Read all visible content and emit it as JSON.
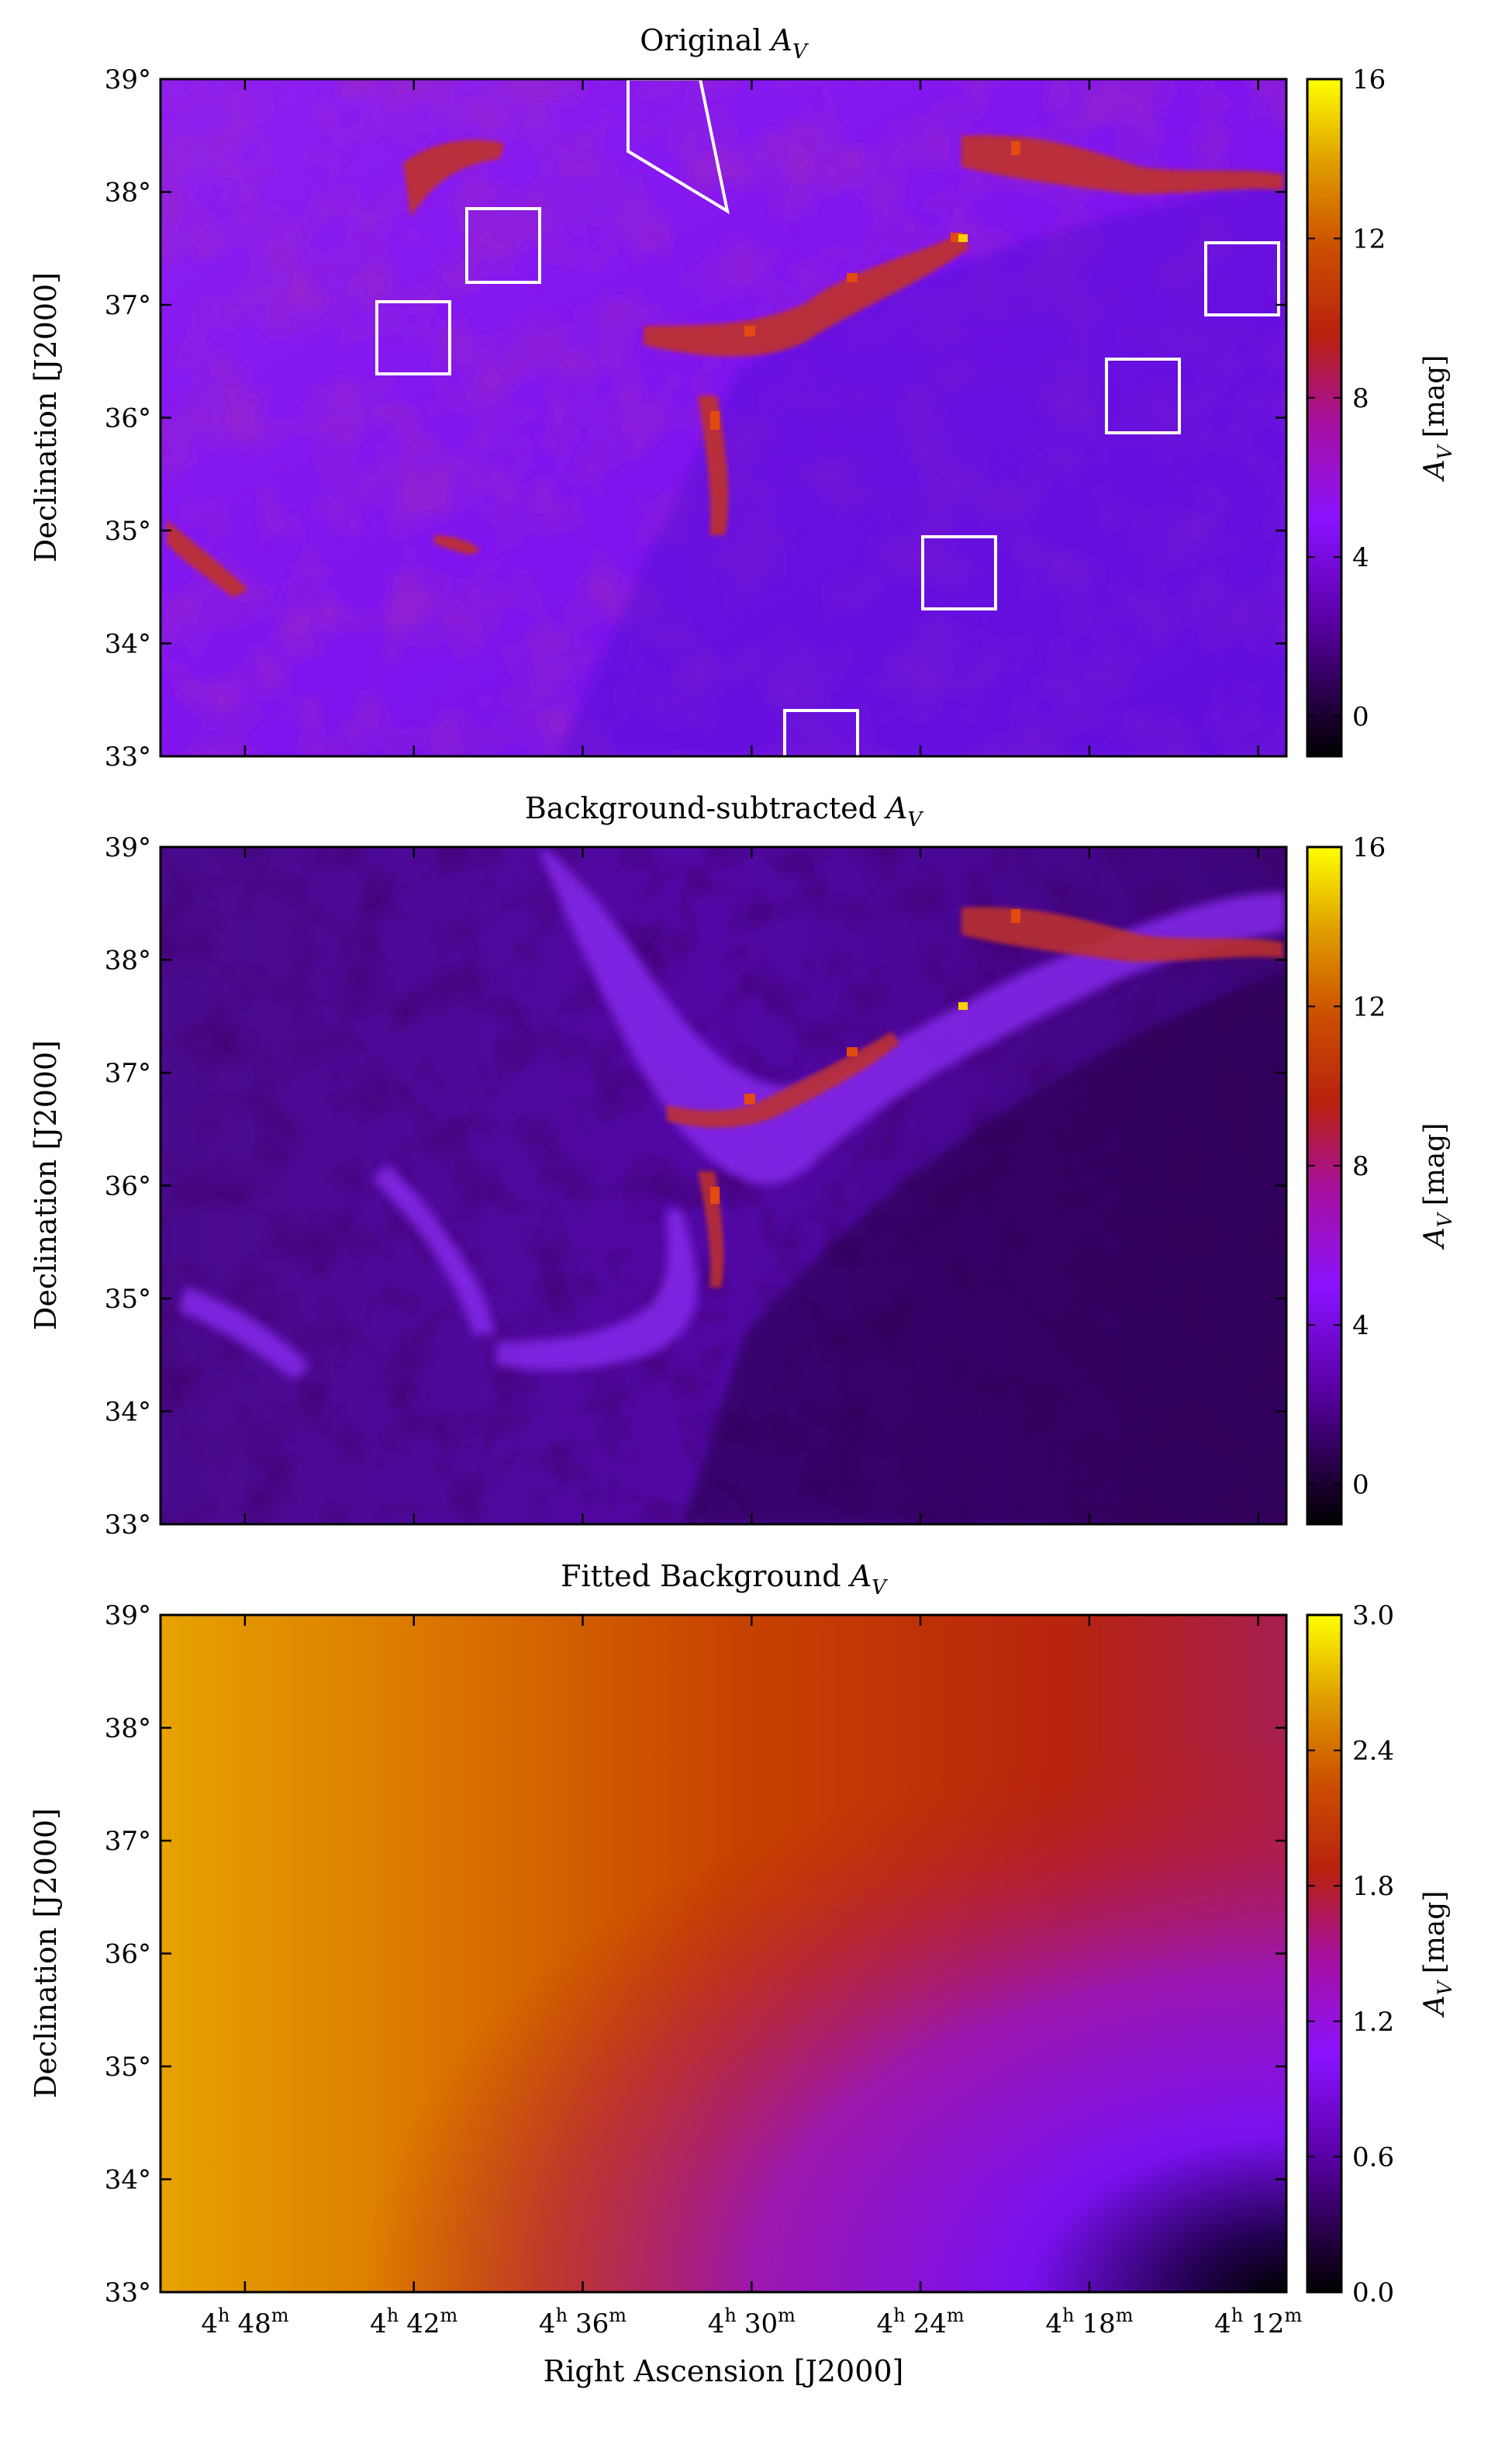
{
  "chart_data": [
    {
      "type": "heatmap",
      "title": "Original",
      "title_symbol": {
        "base": "A",
        "sub": "V"
      },
      "ylabel": "Declination [J2000]",
      "xlabel": "",
      "yticks": [
        "33°",
        "34°",
        "35°",
        "36°",
        "37°",
        "38°",
        "39°"
      ],
      "ylim": [
        33,
        39
      ],
      "xlim_ra_minutes": [
        291,
        251
      ],
      "xticks_ra_minutes": [
        288,
        282,
        276,
        270,
        264,
        258,
        252
      ],
      "colorbar": {
        "label_symbol": {
          "base": "A",
          "sub": "V"
        },
        "label_unit": "[mag]",
        "range": [
          -1,
          16
        ],
        "ticks": [
          "0",
          "4",
          "8",
          "12",
          "16"
        ],
        "tick_values": [
          0,
          4,
          8,
          12,
          16
        ],
        "colormap": "gnuplot"
      },
      "background_regions": [
        {
          "shape": "polygon",
          "points": [
            [
              274.3,
              39.0
            ],
            [
              274.3,
              38.37
            ],
            [
              270.7,
              37.85
            ],
            [
              272.6,
              39.0
            ]
          ]
        },
        {
          "shape": "box",
          "ra": [
            278.8,
            276.2
          ],
          "dec": [
            37.2,
            37.85
          ]
        },
        {
          "shape": "box",
          "ra": [
            283.3,
            280.7
          ],
          "dec": [
            36.4,
            37.05
          ]
        },
        {
          "shape": "box",
          "ra": [
            257.4,
            254.8
          ],
          "dec": [
            35.85,
            36.5
          ]
        },
        {
          "shape": "box",
          "ra": [
            253.2,
            250.6
          ],
          "dec": [
            36.9,
            37.55
          ]
        },
        {
          "shape": "box",
          "ra": [
            263.8,
            261.2
          ],
          "dec": [
            34.3,
            34.95
          ]
        },
        {
          "shape": "box",
          "ra": [
            268.5,
            266.0
          ],
          "dec": [
            33.0,
            33.4
          ]
        }
      ]
    },
    {
      "type": "heatmap",
      "title": "Background-subtracted",
      "title_symbol": {
        "base": "A",
        "sub": "V"
      },
      "ylabel": "Declination [J2000]",
      "xlabel": "",
      "yticks": [
        "33°",
        "34°",
        "35°",
        "36°",
        "37°",
        "38°",
        "39°"
      ],
      "ylim": [
        33,
        39
      ],
      "xlim_ra_minutes": [
        291,
        251
      ],
      "xticks_ra_minutes": [
        288,
        282,
        276,
        270,
        264,
        258,
        252
      ],
      "colorbar": {
        "label_symbol": {
          "base": "A",
          "sub": "V"
        },
        "label_unit": "[mag]",
        "range": [
          -1,
          16
        ],
        "ticks": [
          "0",
          "4",
          "8",
          "12",
          "16"
        ],
        "tick_values": [
          0,
          4,
          8,
          12,
          16
        ],
        "colormap": "gnuplot"
      }
    },
    {
      "type": "heatmap",
      "title": "Fitted Background",
      "title_symbol": {
        "base": "A",
        "sub": "V"
      },
      "ylabel": "Declination [J2000]",
      "xlabel": "Right Ascension [J2000]",
      "yticks": [
        "33°",
        "34°",
        "35°",
        "36°",
        "37°",
        "38°",
        "39°"
      ],
      "ylim": [
        33,
        39
      ],
      "xlim_ra_minutes": [
        291,
        251
      ],
      "xticks_ra_minutes": [
        288,
        282,
        276,
        270,
        264,
        258,
        252
      ],
      "xticks": [
        {
          "h": "4",
          "m": "48"
        },
        {
          "h": "4",
          "m": "42"
        },
        {
          "h": "4",
          "m": "36"
        },
        {
          "h": "4",
          "m": "30"
        },
        {
          "h": "4",
          "m": "24"
        },
        {
          "h": "4",
          "m": "18"
        },
        {
          "h": "4",
          "m": "12"
        }
      ],
      "colorbar": {
        "label_symbol": {
          "base": "A",
          "sub": "V"
        },
        "label_unit": "[mag]",
        "range": [
          0.0,
          3.0
        ],
        "ticks": [
          "0.0",
          "0.6",
          "1.2",
          "1.8",
          "2.4",
          "3.0"
        ],
        "tick_values": [
          0.0,
          0.6,
          1.2,
          1.8,
          2.4,
          3.0
        ],
        "colormap": "gnuplot"
      }
    }
  ]
}
